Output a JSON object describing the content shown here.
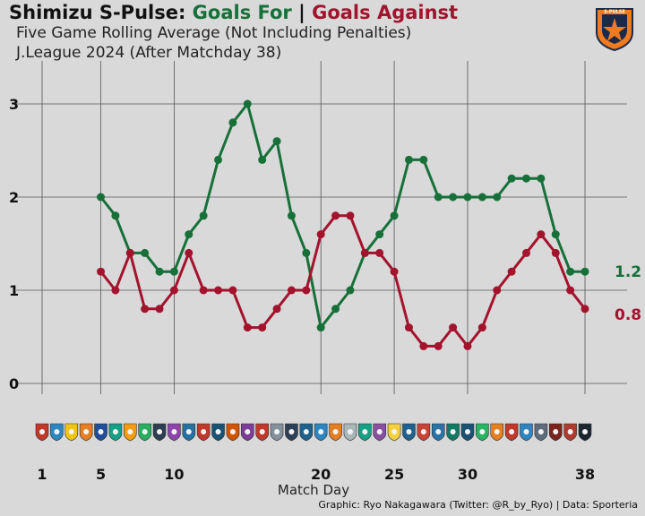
{
  "header": {
    "title_team": "Shimizu S-Pulse: ",
    "title_for": "Goals For",
    "title_sep": " | ",
    "title_against": "Goals Against",
    "subtitle_1": "Five Game Rolling Average (Not Including Penalties)",
    "subtitle_2": "J.League 2024 (After Matchday 38)",
    "crest_text": "S-PULSE"
  },
  "colors": {
    "background": "#d9d9d9",
    "goals_for": "#17703a",
    "goals_against": "#a3132d",
    "grid": "#555555",
    "crest_orange": "#f07a1e",
    "crest_navy": "#1c2a4a"
  },
  "chart_data": {
    "type": "line",
    "title": "Shimizu S-Pulse: Goals For | Goals Against",
    "subtitle": "Five Game Rolling Average (Not Including Penalties)",
    "xlabel": "Match Day",
    "ylabel": "",
    "xlim": [
      1,
      38
    ],
    "ylim": [
      0,
      3
    ],
    "x_ticks": [
      1,
      5,
      10,
      20,
      25,
      30,
      38
    ],
    "y_ticks": [
      0,
      1,
      2,
      3
    ],
    "grid": true,
    "x": [
      5,
      6,
      7,
      8,
      9,
      10,
      11,
      12,
      13,
      14,
      15,
      16,
      17,
      18,
      19,
      20,
      21,
      22,
      23,
      24,
      25,
      26,
      27,
      28,
      29,
      30,
      31,
      32,
      33,
      34,
      35,
      36,
      37,
      38
    ],
    "series": [
      {
        "name": "Goals For",
        "color": "#17703a",
        "end_label": "1.2",
        "values": [
          2.0,
          1.8,
          1.4,
          1.4,
          1.2,
          1.2,
          1.6,
          1.8,
          2.4,
          2.8,
          3.0,
          2.4,
          2.6,
          1.8,
          1.4,
          0.6,
          0.8,
          1.0,
          1.4,
          1.6,
          1.8,
          2.4,
          2.4,
          2.0,
          2.0,
          2.0,
          2.0,
          2.0,
          2.2,
          2.2,
          2.2,
          1.6,
          1.2,
          1.2
        ]
      },
      {
        "name": "Goals Against",
        "color": "#a3132d",
        "end_label": "0.8",
        "values": [
          1.2,
          1.0,
          1.4,
          0.8,
          0.8,
          1.0,
          1.4,
          1.0,
          1.0,
          1.0,
          0.6,
          0.6,
          0.8,
          1.0,
          1.0,
          1.6,
          1.8,
          1.8,
          1.4,
          1.4,
          1.2,
          0.6,
          0.4,
          0.4,
          0.6,
          0.4,
          0.6,
          1.0,
          1.2,
          1.4,
          1.6,
          1.4,
          1.0,
          0.8
        ]
      }
    ],
    "opponent_badge_colors": [
      "#c0392b",
      "#2e86c1",
      "#f1c40f",
      "#e67e22",
      "#1f4e9c",
      "#16a085",
      "#f39c12",
      "#27ae60",
      "#2c3e50",
      "#8e44ad",
      "#2471a3",
      "#c0392b",
      "#1a5276",
      "#d35400",
      "#7d3c98",
      "#c0392b",
      "#85929e",
      "#2e4053",
      "#1f618d",
      "#2e86c1",
      "#e67e22",
      "#aab7b8",
      "#16a085",
      "#884ea0",
      "#f4d03f",
      "#21618c",
      "#cb4335",
      "#2874a6",
      "#117a65",
      "#1a5276",
      "#28b463",
      "#e67e22",
      "#c0392b",
      "#2e86c1",
      "#5d6d7e",
      "#7b241c",
      "#b03a2e",
      "#1b2631"
    ]
  },
  "footer": {
    "xlabel": "Match Day",
    "credit": "Graphic: Ryo Nakagawara (Twitter: @R_by_Ryo) | Data: Sporteria"
  }
}
